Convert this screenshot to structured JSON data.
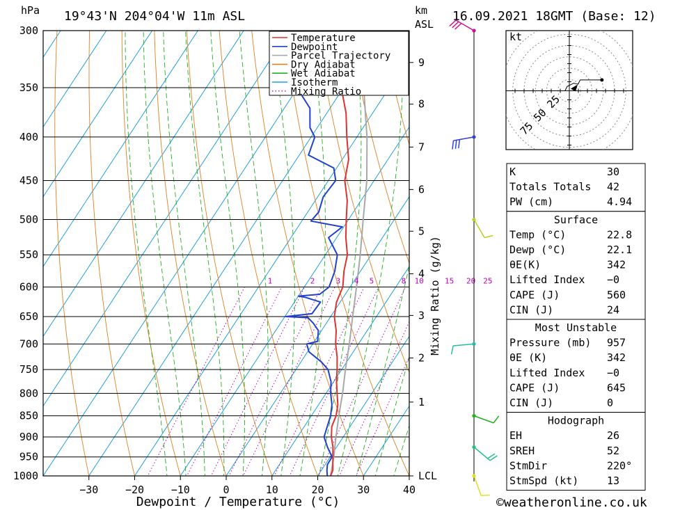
{
  "header": {
    "pressure_unit": "hPa",
    "location": "19°43'N  204°04'W  11m  ASL",
    "height_unit_km": "km",
    "height_unit_asl": "ASL",
    "datetime": "16.09.2021  18GMT  (Base: 12)"
  },
  "footer": {
    "credit": "©weatheronline.co.uk"
  },
  "colors": {
    "temperature": "#e03030",
    "dewpoint": "#2040d0",
    "parcel": "#a8a8a8",
    "dry_adiabat": "#e08020",
    "wet_adiabat": "#20b020",
    "isotherm": "#20a0e0",
    "mixing_ratio": "#c000c0"
  },
  "legend": [
    {
      "key": "temperature",
      "label": "Temperature",
      "style": "solid"
    },
    {
      "key": "dewpoint",
      "label": "Dewpoint",
      "style": "solid"
    },
    {
      "key": "parcel",
      "label": "Parcel Trajectory",
      "style": "solid"
    },
    {
      "key": "dry_adiabat",
      "label": "Dry Adiabat",
      "style": "solid"
    },
    {
      "key": "wet_adiabat",
      "label": "Wet Adiabat",
      "style": "solid"
    },
    {
      "key": "isotherm",
      "label": "Isotherm",
      "style": "solid"
    },
    {
      "key": "mixing_ratio",
      "label": "Mixing Ratio",
      "style": "dotted"
    }
  ],
  "chart_data": {
    "type": "line",
    "xlabel": "Dewpoint / Temperature (°C)",
    "ylabel_pressure": "hPa",
    "ylabel_mixing": "Mixing Ratio (g/kg)",
    "xlim": [
      -40,
      40
    ],
    "skew_deg_per_log": 53,
    "x_ticks": [
      -30,
      -20,
      -10,
      0,
      10,
      20,
      30,
      40
    ],
    "x_tick_labels": [
      "−30",
      "−20",
      "−10",
      "0",
      "10",
      "20",
      "30",
      "40"
    ],
    "pressure_ticks": [
      300,
      350,
      400,
      450,
      500,
      550,
      600,
      650,
      700,
      750,
      800,
      850,
      900,
      950,
      1000
    ],
    "pressure_range": [
      300,
      1000
    ],
    "height_ticks": [
      {
        "km": "9",
        "p": 327
      },
      {
        "km": "8",
        "p": 366
      },
      {
        "km": "7",
        "p": 411
      },
      {
        "km": "6",
        "p": 461
      },
      {
        "km": "5",
        "p": 516
      },
      {
        "km": "4",
        "p": 579
      },
      {
        "km": "3",
        "p": 648
      },
      {
        "km": "2",
        "p": 727
      },
      {
        "km": "1",
        "p": 819
      },
      {
        "km": "LCL",
        "p": 1000
      }
    ],
    "mixing_ratio_labels": [
      {
        "value": "1",
        "t": -17.5
      },
      {
        "value": "2",
        "t": -8.2
      },
      {
        "value": "3",
        "t": -2.6
      },
      {
        "value": "4",
        "t": 1.4
      },
      {
        "value": "5",
        "t": 4.7
      },
      {
        "value": "8",
        "t": 11.7
      },
      {
        "value": "10",
        "t": 15.1
      },
      {
        "value": "15",
        "t": 21.7
      },
      {
        "value": "20",
        "t": 26.4
      },
      {
        "value": "25",
        "t": 30.1
      }
    ],
    "mixing_label_pressure": 600,
    "series": [
      {
        "name": "Temperature",
        "key": "temperature",
        "points": [
          [
            1000,
            22.8
          ],
          [
            985,
            22.5
          ],
          [
            950,
            20.6
          ],
          [
            925,
            19.2
          ],
          [
            900,
            17.4
          ],
          [
            875,
            16.0
          ],
          [
            850,
            15.4
          ],
          [
            825,
            14.2
          ],
          [
            800,
            12.4
          ],
          [
            775,
            10.6
          ],
          [
            750,
            9.0
          ],
          [
            725,
            7.2
          ],
          [
            700,
            5.0
          ],
          [
            675,
            3.2
          ],
          [
            650,
            0.8
          ],
          [
            625,
            -0.8
          ],
          [
            600,
            -1.6
          ],
          [
            575,
            -3.6
          ],
          [
            550,
            -5.2
          ],
          [
            525,
            -8.0
          ],
          [
            500,
            -10.5
          ],
          [
            475,
            -13.0
          ],
          [
            450,
            -16.4
          ],
          [
            425,
            -18.6
          ],
          [
            400,
            -22.2
          ],
          [
            375,
            -25.8
          ],
          [
            350,
            -30.5
          ],
          [
            325,
            -35.8
          ],
          [
            300,
            -41.2
          ]
        ]
      },
      {
        "name": "Dewpoint",
        "key": "dewpoint",
        "points": [
          [
            1000,
            22.1
          ],
          [
            985,
            21.2
          ],
          [
            970,
            20.5
          ],
          [
            950,
            20.4
          ],
          [
            925,
            18.0
          ],
          [
            900,
            15.8
          ],
          [
            875,
            15.0
          ],
          [
            850,
            14.2
          ],
          [
            825,
            12.9
          ],
          [
            800,
            11.0
          ],
          [
            775,
            9.4
          ],
          [
            750,
            7.0
          ],
          [
            735,
            4.5
          ],
          [
            715,
            0.3
          ],
          [
            700,
            -1.3
          ],
          [
            695,
            0.7
          ],
          [
            675,
            -0.7
          ],
          [
            662,
            -2.8
          ],
          [
            652,
            -4.8
          ],
          [
            650,
            -9.8
          ],
          [
            645,
            -4.5
          ],
          [
            625,
            -4.3
          ],
          [
            617,
            -8.3
          ],
          [
            615,
            -10.0
          ],
          [
            612,
            -5.6
          ],
          [
            600,
            -4.6
          ],
          [
            575,
            -5.6
          ],
          [
            550,
            -7.4
          ],
          [
            525,
            -11.8
          ],
          [
            510,
            -10.3
          ],
          [
            502,
            -18.0
          ],
          [
            490,
            -17.6
          ],
          [
            470,
            -18.8
          ],
          [
            450,
            -18.4
          ],
          [
            435,
            -20.6
          ],
          [
            420,
            -28.0
          ],
          [
            400,
            -29.2
          ],
          [
            390,
            -31.6
          ],
          [
            370,
            -34.4
          ],
          [
            350,
            -40.2
          ],
          [
            340,
            -42.0
          ],
          [
            325,
            -41.2
          ],
          [
            310,
            -44.0
          ],
          [
            300,
            -45.2
          ]
        ]
      },
      {
        "name": "Parcel Trajectory",
        "key": "parcel",
        "points": [
          [
            1000,
            22.8
          ],
          [
            950,
            20.8
          ],
          [
            900,
            18.4
          ],
          [
            850,
            16.0
          ],
          [
            800,
            13.6
          ],
          [
            750,
            10.8
          ],
          [
            700,
            8.0
          ],
          [
            650,
            4.8
          ],
          [
            600,
            1.4
          ],
          [
            550,
            -2.4
          ],
          [
            500,
            -6.8
          ],
          [
            450,
            -11.6
          ],
          [
            400,
            -17.8
          ],
          [
            350,
            -25.6
          ],
          [
            300,
            -34.6
          ]
        ]
      }
    ],
    "wind_profile": [
      {
        "p": 300,
        "speed_kt": 30,
        "dir_deg": 300,
        "color": "#d01090"
      },
      {
        "p": 400,
        "speed_kt": 25,
        "dir_deg": 260,
        "color": "#3040e0"
      },
      {
        "p": 500,
        "speed_kt": 10,
        "dir_deg": 150,
        "color": "#b8d020"
      },
      {
        "p": 700,
        "speed_kt": 10,
        "dir_deg": 265,
        "color": "#20c0a0"
      },
      {
        "p": 850,
        "speed_kt": 10,
        "dir_deg": 110,
        "color": "#20b020"
      },
      {
        "p": 925,
        "speed_kt": 15,
        "dir_deg": 130,
        "color": "#20c080"
      },
      {
        "p": 1000,
        "speed_kt": 10,
        "dir_deg": 160,
        "color": "#e0e020"
      }
    ],
    "hodograph": {
      "unit": "kt",
      "ring_labels": [
        "25",
        "50",
        "75"
      ],
      "points": [
        [
          0,
          0
        ],
        [
          -4,
          0
        ],
        [
          -2,
          4
        ],
        [
          4,
          7
        ],
        [
          8,
          6
        ],
        [
          10,
          10
        ],
        [
          30,
          10
        ]
      ]
    }
  },
  "indices": {
    "general": [
      {
        "label": "K",
        "value": "30"
      },
      {
        "label": "Totals Totals",
        "value": "42"
      },
      {
        "label": "PW (cm)",
        "value": "4.94"
      }
    ],
    "surface": {
      "title": "Surface",
      "rows": [
        {
          "label": "Temp (°C)",
          "value": "22.8"
        },
        {
          "label": "Dewp (°C)",
          "value": "22.1"
        },
        {
          "label": "θE(K)",
          "value": "342"
        },
        {
          "label": "Lifted Index",
          "value": "−0"
        },
        {
          "label": "CAPE (J)",
          "value": "560"
        },
        {
          "label": "CIN (J)",
          "value": "24"
        }
      ]
    },
    "most_unstable": {
      "title": "Most Unstable",
      "rows": [
        {
          "label": "Pressure (mb)",
          "value": "957"
        },
        {
          "label": "θE (K)",
          "value": "342"
        },
        {
          "label": "Lifted Index",
          "value": "−0"
        },
        {
          "label": "CAPE (J)",
          "value": "645"
        },
        {
          "label": "CIN (J)",
          "value": "0"
        }
      ]
    },
    "hodograph": {
      "title": "Hodograph",
      "rows": [
        {
          "label": "EH",
          "value": "26"
        },
        {
          "label": "SREH",
          "value": "52"
        },
        {
          "label": "StmDir",
          "value": "220°"
        },
        {
          "label": "StmSpd (kt)",
          "value": "13"
        }
      ]
    }
  }
}
